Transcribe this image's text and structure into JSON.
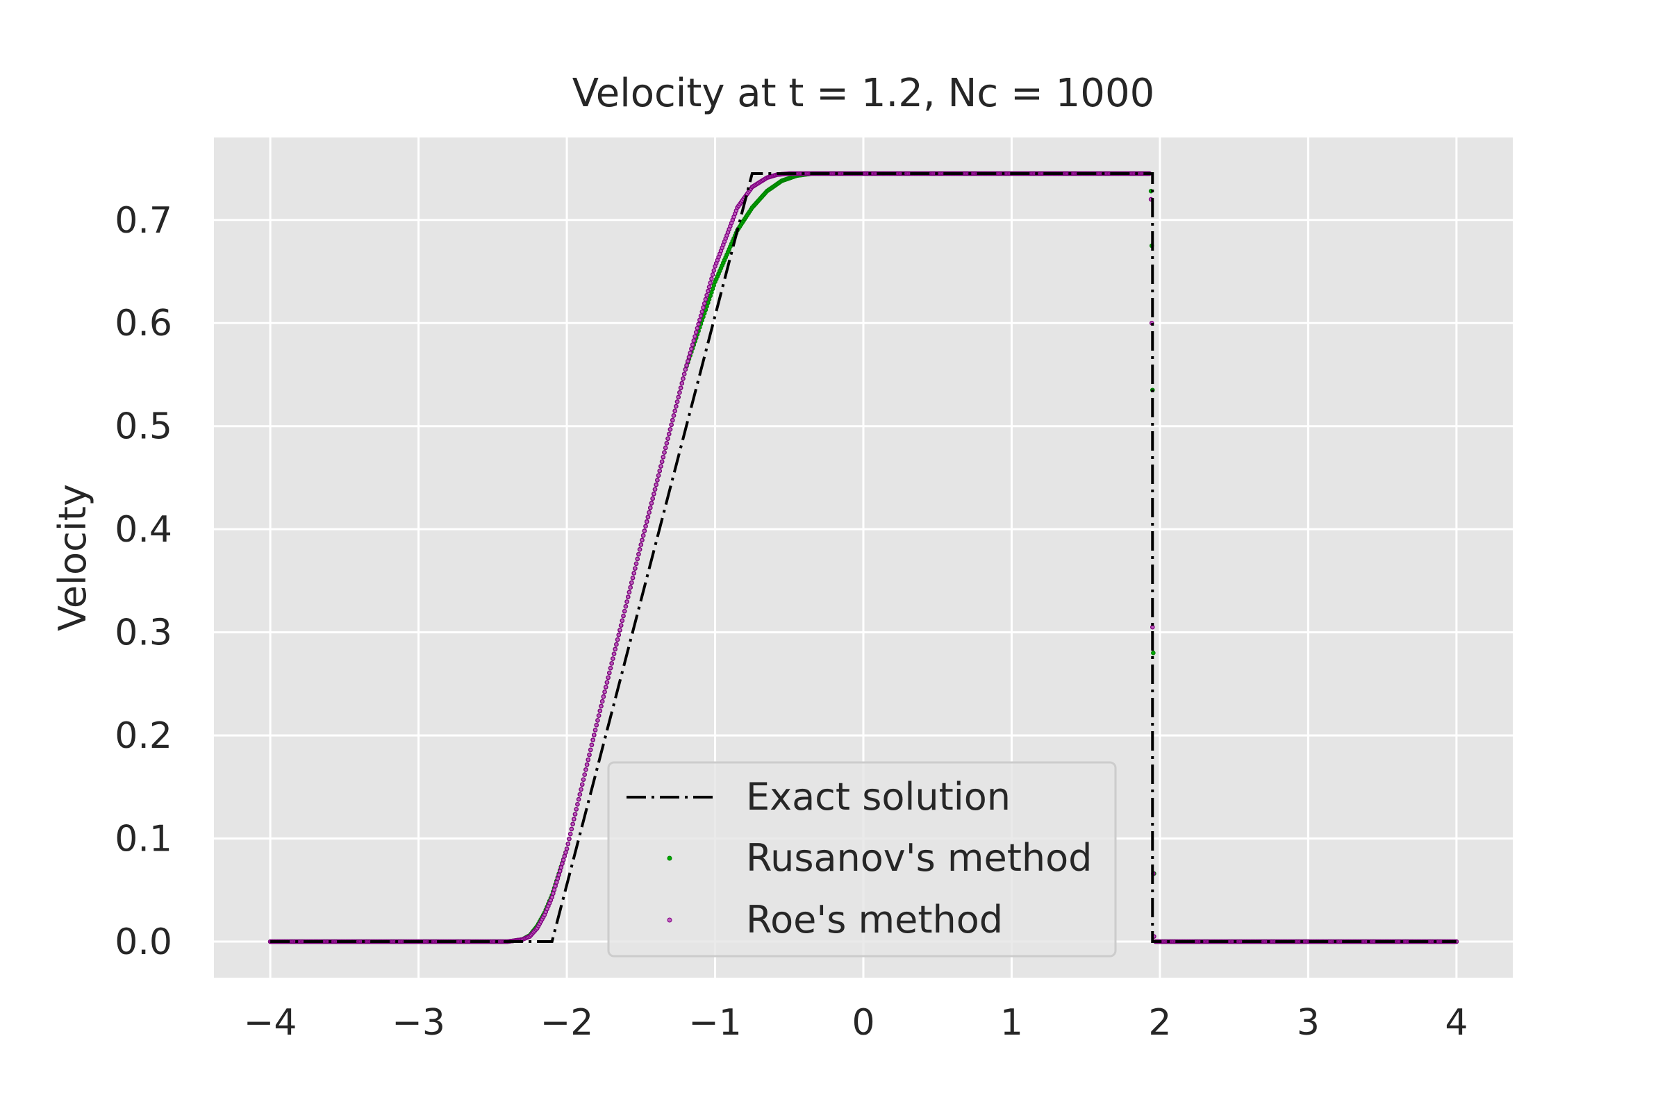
{
  "chart_data": {
    "type": "line",
    "title": "Velocity at t = 1.2, Nc = 1000",
    "xlabel": "",
    "ylabel": "Velocity",
    "xlim": [
      -4.38,
      4.38
    ],
    "ylim": [
      -0.035,
      0.78
    ],
    "xticks": [
      -4,
      -3,
      -2,
      -1,
      0,
      1,
      2,
      3,
      4
    ],
    "xtick_labels": [
      "−4",
      "−3",
      "−2",
      "−1",
      "0",
      "1",
      "2",
      "3",
      "4"
    ],
    "yticks": [
      0.0,
      0.1,
      0.2,
      0.3,
      0.4,
      0.5,
      0.6,
      0.7
    ],
    "ytick_labels": [
      "0.0",
      "0.1",
      "0.2",
      "0.3",
      "0.4",
      "0.5",
      "0.6",
      "0.7"
    ],
    "grid": true,
    "legend_position": "lower-center",
    "colors": {
      "background": "#e5e5e5",
      "grid": "#ffffff",
      "exact": "#000000",
      "rusanov": "#008000",
      "roe": "#800080"
    },
    "series": [
      {
        "name": "Exact solution",
        "style": "dash-dot line",
        "x": [
          -4.0,
          -2.1,
          -0.75,
          1.95,
          1.95,
          4.0
        ],
        "y": [
          0.0,
          0.0,
          0.745,
          0.745,
          0.0,
          0.0
        ]
      },
      {
        "name": "Rusanov's method",
        "style": "small dots",
        "x": [
          -4.0,
          -2.4,
          -2.3,
          -2.25,
          -2.2,
          -2.15,
          -2.1,
          -2.0,
          -1.8,
          -1.5,
          -1.2,
          -1.0,
          -0.85,
          -0.75,
          -0.65,
          -0.55,
          -0.45,
          -0.35,
          0.0,
          1.0,
          1.93,
          1.94,
          1.945,
          1.95,
          1.955,
          1.96,
          1.97,
          2.0,
          4.0
        ],
        "y": [
          0.0,
          0.0,
          0.002,
          0.006,
          0.015,
          0.028,
          0.045,
          0.09,
          0.21,
          0.385,
          0.555,
          0.64,
          0.69,
          0.712,
          0.728,
          0.738,
          0.743,
          0.745,
          0.745,
          0.745,
          0.745,
          0.728,
          0.675,
          0.535,
          0.28,
          0.066,
          0.0,
          0.0,
          0.0
        ]
      },
      {
        "name": "Roe's method",
        "style": "small dots",
        "x": [
          -4.0,
          -2.4,
          -2.3,
          -2.25,
          -2.2,
          -2.15,
          -2.1,
          -2.0,
          -1.8,
          -1.5,
          -1.2,
          -1.0,
          -0.85,
          -0.75,
          -0.65,
          -0.58,
          -0.5,
          -0.4,
          0.0,
          1.0,
          1.93,
          1.94,
          1.945,
          1.95,
          1.955,
          1.96,
          1.97,
          2.0,
          4.0
        ],
        "y": [
          0.0,
          0.0,
          0.002,
          0.005,
          0.013,
          0.026,
          0.043,
          0.09,
          0.21,
          0.385,
          0.555,
          0.655,
          0.712,
          0.732,
          0.741,
          0.744,
          0.745,
          0.745,
          0.745,
          0.745,
          0.745,
          0.72,
          0.6,
          0.305,
          0.066,
          0.005,
          0.0,
          0.0,
          0.0
        ]
      }
    ]
  }
}
